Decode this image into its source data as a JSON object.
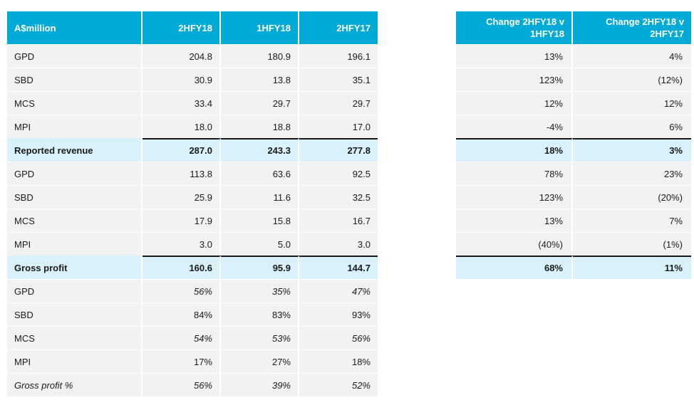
{
  "main_table": {
    "headers": [
      "A$million",
      "2HFY18",
      "1HFY18",
      "2HFY17"
    ],
    "rows": [
      {
        "label": "GPD",
        "v1": "204.8",
        "v2": "180.9",
        "v3": "196.1"
      },
      {
        "label": "SBD",
        "v1": "30.9",
        "v2": "13.8",
        "v3": "35.1"
      },
      {
        "label": "MCS",
        "v1": "33.4",
        "v2": "29.7",
        "v3": "29.7"
      },
      {
        "label": "MPI",
        "v1": "18.0",
        "v2": "18.8",
        "v3": "17.0"
      },
      {
        "label": "Reported revenue",
        "v1": "287.0",
        "v2": "243.3",
        "v3": "277.8"
      },
      {
        "label": "GPD",
        "v1": "113.8",
        "v2": "63.6",
        "v3": "92.5"
      },
      {
        "label": "SBD",
        "v1": "25.9",
        "v2": "11.6",
        "v3": "32.5"
      },
      {
        "label": "MCS",
        "v1": "17.9",
        "v2": "15.8",
        "v3": "16.7"
      },
      {
        "label": "MPI",
        "v1": "3.0",
        "v2": "5.0",
        "v3": "3.0"
      },
      {
        "label": "Gross profit",
        "v1": "160.6",
        "v2": "95.9",
        "v3": "144.7"
      },
      {
        "label": "GPD",
        "v1": "56%",
        "v2": "35%",
        "v3": "47%"
      },
      {
        "label": "SBD",
        "v1": "84%",
        "v2": "83%",
        "v3": "93%"
      },
      {
        "label": "MCS",
        "v1": "54%",
        "v2": "53%",
        "v3": "56%"
      },
      {
        "label": "MPI",
        "v1": "17%",
        "v2": "27%",
        "v3": "18%"
      },
      {
        "label": "Gross profit %",
        "v1": "56%",
        "v2": "39%",
        "v3": "52%"
      }
    ]
  },
  "change_table": {
    "headers": [
      "Change 2HFY18 v 1HFY18",
      "Change 2HFY18 v 2HFY17"
    ],
    "rows": [
      {
        "c1": "13%",
        "c2": "4%"
      },
      {
        "c1": "123%",
        "c2": "(12%)"
      },
      {
        "c1": "12%",
        "c2": "12%"
      },
      {
        "c1": "-4%",
        "c2": "6%"
      },
      {
        "c1": "18%",
        "c2": "3%"
      },
      {
        "c1": "78%",
        "c2": "23%"
      },
      {
        "c1": "123%",
        "c2": "(20%)"
      },
      {
        "c1": "13%",
        "c2": "7%"
      },
      {
        "c1": "(40%)",
        "c2": "(1%)"
      },
      {
        "c1": "68%",
        "c2": "11%"
      }
    ]
  },
  "colors": {
    "header_bg": "#00aad6",
    "row_bg": "#f2f2f2",
    "total_bg": "#d9f1fa"
  }
}
